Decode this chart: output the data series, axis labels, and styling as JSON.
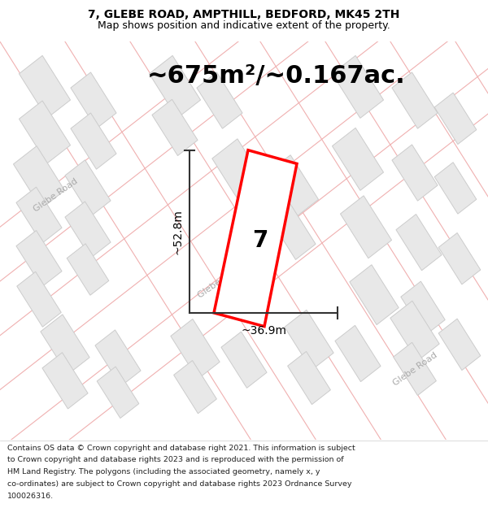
{
  "title_line1": "7, GLEBE ROAD, AMPTHILL, BEDFORD, MK45 2TH",
  "title_line2": "Map shows position and indicative extent of the property.",
  "area_text": "~675m²/~0.167ac.",
  "dim_width": "~36.9m",
  "dim_height": "~52.8m",
  "label_number": "7",
  "footer_lines": [
    "Contains OS data © Crown copyright and database right 2021. This information is subject",
    "to Crown copyright and database rights 2023 and is reproduced with the permission of",
    "HM Land Registry. The polygons (including the associated geometry, namely x, y",
    "co-ordinates) are subject to Crown copyright and database rights 2023 Ordnance Survey",
    "100026316."
  ],
  "map_bg": "#ffffff",
  "building_color": "#e8e8e8",
  "building_edge": "#cccccc",
  "road_line_color": "#f0b0b0",
  "road_fill_color": "#fde8e8",
  "highlight_color": "#ff0000",
  "highlight_fill": "#ffffff",
  "dim_line_color": "#333333",
  "text_color": "#000000",
  "road_label_color": "#aaaaaa",
  "footer_text_color": "#222222",
  "title_fontsize": 10,
  "subtitle_fontsize": 9,
  "area_fontsize": 22,
  "dim_fontsize": 10,
  "road_label_fontsize": 8,
  "label_fontsize": 20,
  "footer_fontsize": 6.8,
  "road_lw": 0.8,
  "dim_lw": 1.5
}
